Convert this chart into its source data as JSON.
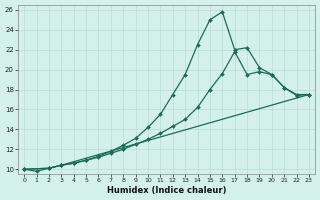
{
  "xlabel": "Humidex (Indice chaleur)",
  "bg_color": "#d4f0ea",
  "grid_color": "#b8ddd6",
  "line_color": "#1a6b5a",
  "xlim": [
    -0.5,
    23.5
  ],
  "ylim": [
    9.5,
    26.5
  ],
  "yticks": [
    10,
    12,
    14,
    16,
    18,
    20,
    22,
    24,
    26
  ],
  "xticks": [
    0,
    1,
    2,
    3,
    4,
    5,
    6,
    7,
    8,
    9,
    10,
    11,
    12,
    13,
    14,
    15,
    16,
    17,
    18,
    19,
    20,
    21,
    22,
    23
  ],
  "line1_x": [
    0,
    1,
    2,
    3,
    4,
    5,
    6,
    7,
    8,
    9,
    10,
    11,
    12,
    13,
    14,
    15,
    16,
    17,
    18,
    19,
    20,
    21,
    22,
    23
  ],
  "line1_y": [
    10.0,
    9.8,
    10.1,
    10.4,
    10.6,
    10.9,
    11.3,
    11.8,
    12.4,
    13.1,
    14.2,
    15.5,
    17.5,
    19.5,
    22.5,
    25.0,
    25.8,
    22.0,
    22.2,
    20.2,
    19.5,
    18.2,
    17.4,
    17.5
  ],
  "line2_x": [
    0,
    2,
    3,
    4,
    5,
    6,
    7,
    8,
    9,
    10,
    11,
    12,
    13,
    14,
    15,
    16,
    17,
    18,
    19,
    20,
    21,
    22,
    23
  ],
  "line2_y": [
    10.0,
    10.1,
    10.4,
    10.6,
    10.9,
    11.2,
    11.6,
    12.0,
    12.5,
    13.0,
    13.6,
    14.3,
    15.0,
    16.2,
    18.0,
    19.6,
    21.8,
    19.5,
    19.8,
    19.5,
    18.2,
    17.5,
    17.5
  ],
  "line3_x": [
    0,
    2,
    3,
    23
  ],
  "line3_y": [
    10.0,
    10.1,
    10.4,
    17.5
  ]
}
